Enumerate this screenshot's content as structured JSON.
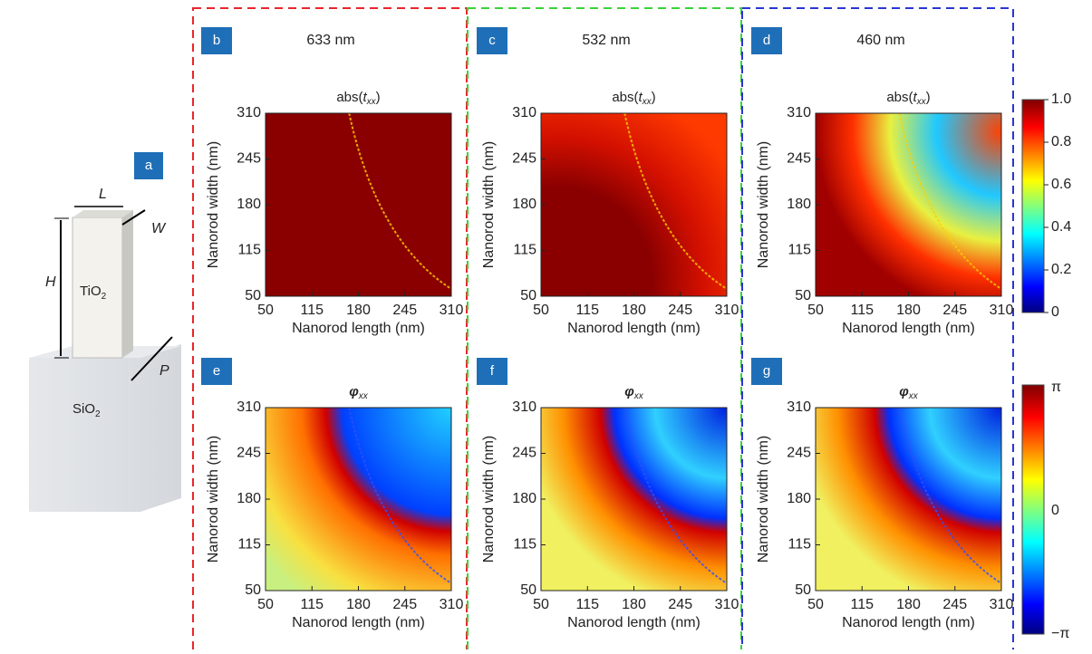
{
  "schematic": {
    "letter": "a",
    "L": "L",
    "W": "W",
    "H": "H",
    "P": "P",
    "tio": "TiO",
    "tio_sub": "2",
    "sio": "SiO",
    "sio_sub": "2"
  },
  "panels": [
    {
      "letter": "b",
      "wavelength": "633 nm",
      "title": "abs(",
      "title_var": "t",
      "title_sub": "xx",
      "title_end": ")",
      "xlabel": "Nanorod length (nm)",
      "ylabel": "Nanorod width (nm)",
      "xticks": [
        50,
        115,
        180,
        245,
        310
      ],
      "yticks": [
        50,
        115,
        180,
        245,
        310
      ]
    },
    {
      "letter": "c",
      "wavelength": "532 nm",
      "title": "abs(",
      "title_var": "t",
      "title_sub": "xx",
      "title_end": ")",
      "xlabel": "Nanorod length (nm)",
      "ylabel": "Nanorod width (nm)",
      "xticks": [
        50,
        115,
        180,
        245,
        310
      ],
      "yticks": [
        50,
        115,
        180,
        245,
        310
      ]
    },
    {
      "letter": "d",
      "wavelength": "460 nm",
      "title": "abs(",
      "title_var": "t",
      "title_sub": "xx",
      "title_end": ")",
      "xlabel": "Nanorod length (nm)",
      "ylabel": "Nanorod width (nm)",
      "xticks": [
        50,
        115,
        180,
        245,
        310
      ],
      "yticks": [
        50,
        115,
        180,
        245,
        310
      ]
    },
    {
      "letter": "e",
      "title_var": "φ",
      "title_sub": "xx",
      "xlabel": "Nanorod length (nm)",
      "ylabel": "Nanorod width (nm)",
      "xticks": [
        50,
        115,
        180,
        245,
        310
      ],
      "yticks": [
        50,
        115,
        180,
        245,
        310
      ]
    },
    {
      "letter": "f",
      "title_var": "φ",
      "title_sub": "xx",
      "xlabel": "Nanorod length (nm)",
      "ylabel": "Nanorod width (nm)",
      "xticks": [
        50,
        115,
        180,
        245,
        310
      ],
      "yticks": [
        50,
        115,
        180,
        245,
        310
      ]
    },
    {
      "letter": "g",
      "title_var": "φ",
      "title_sub": "xx",
      "xlabel": "Nanorod length (nm)",
      "ylabel": "Nanorod width (nm)",
      "xticks": [
        50,
        115,
        180,
        245,
        310
      ],
      "yticks": [
        50,
        115,
        180,
        245,
        310
      ]
    }
  ],
  "colorbar_amplitude": {
    "ticks": [
      0,
      0.2,
      0.4,
      0.6,
      0.8,
      {
        "value": 1,
        "label": "1.0"
      }
    ]
  },
  "colorbar_phase": {
    "labels": [
      "π",
      "0",
      "−π"
    ]
  }
}
